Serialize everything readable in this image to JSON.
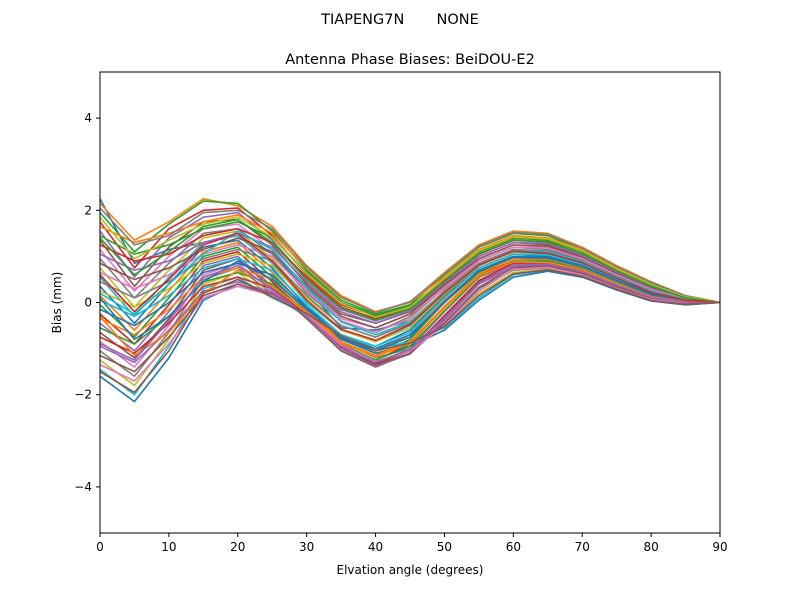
{
  "chart_data": {
    "type": "line",
    "suptitle": "TIAPENG7N       NONE",
    "title": "Antenna Phase Biases: BeiDOU-E2",
    "xlabel": "Elvation angle (degrees)",
    "ylabel": "Bias (mm)",
    "xlim": [
      0,
      90
    ],
    "ylim": [
      -5,
      5
    ],
    "xticks": [
      0,
      10,
      20,
      30,
      40,
      50,
      60,
      70,
      80,
      90
    ],
    "yticks": [
      -4,
      -2,
      0,
      2,
      4
    ],
    "grid": false,
    "legend": "none",
    "x": [
      0,
      5,
      10,
      15,
      20,
      25,
      30,
      35,
      40,
      45,
      50,
      55,
      60,
      65,
      70,
      75,
      80,
      85,
      90
    ],
    "series_colors": [
      "#1f77b4",
      "#ff7f0e",
      "#2ca02c",
      "#d62728",
      "#9467bd",
      "#8c564b",
      "#e377c2",
      "#7f7f7f",
      "#bcbd22",
      "#17becf"
    ],
    "series": [
      {
        "values": [
          2.25,
          0.85,
          1.15,
          1.3,
          1.45,
          1.05,
          0.3,
          -0.55,
          -0.6,
          -0.4,
          0.15,
          0.75,
          1.05,
          1.0,
          0.85,
          0.55,
          0.3,
          0.1,
          0.0
        ]
      },
      {
        "values": [
          2.15,
          1.35,
          1.75,
          2.25,
          2.1,
          1.65,
          0.8,
          0.15,
          -0.2,
          0.0,
          0.65,
          1.25,
          1.55,
          1.5,
          1.2,
          0.8,
          0.45,
          0.15,
          0.0
        ]
      },
      {
        "values": [
          1.95,
          1.1,
          1.7,
          2.2,
          2.15,
          1.55,
          0.7,
          0.05,
          -0.25,
          -0.05,
          0.6,
          1.2,
          1.5,
          1.45,
          1.15,
          0.75,
          0.4,
          0.12,
          0.0
        ]
      },
      {
        "values": [
          1.75,
          0.75,
          1.6,
          2.0,
          2.05,
          1.45,
          0.6,
          -0.05,
          -0.3,
          -0.1,
          0.5,
          1.1,
          1.4,
          1.35,
          1.1,
          0.7,
          0.38,
          0.1,
          0.0
        ]
      },
      {
        "values": [
          1.55,
          0.55,
          1.4,
          1.85,
          1.95,
          1.35,
          0.5,
          -0.15,
          -0.4,
          -0.15,
          0.45,
          1.05,
          1.35,
          1.3,
          1.05,
          0.68,
          0.35,
          0.1,
          0.0
        ]
      },
      {
        "values": [
          1.35,
          0.35,
          1.2,
          1.75,
          1.8,
          1.25,
          0.4,
          -0.25,
          -0.45,
          -0.2,
          0.4,
          1.0,
          1.3,
          1.25,
          1.0,
          0.65,
          0.33,
          0.08,
          0.0
        ]
      },
      {
        "values": [
          1.15,
          0.25,
          1.0,
          1.6,
          1.7,
          1.15,
          0.3,
          -0.35,
          -0.55,
          -0.25,
          0.35,
          0.95,
          1.25,
          1.2,
          0.95,
          0.6,
          0.3,
          0.08,
          0.0
        ]
      },
      {
        "values": [
          0.95,
          0.1,
          0.85,
          1.5,
          1.6,
          1.05,
          0.2,
          -0.4,
          -0.65,
          -0.3,
          0.3,
          0.9,
          1.2,
          1.15,
          0.92,
          0.58,
          0.28,
          0.07,
          0.0
        ]
      },
      {
        "values": [
          0.75,
          -0.1,
          0.7,
          1.4,
          1.55,
          0.95,
          0.1,
          -0.5,
          -0.75,
          -0.4,
          0.25,
          0.85,
          1.15,
          1.1,
          0.88,
          0.55,
          0.25,
          0.05,
          0.0
        ]
      },
      {
        "values": [
          0.55,
          -0.3,
          0.55,
          1.3,
          1.45,
          0.85,
          0.0,
          -0.6,
          -0.85,
          -0.5,
          0.2,
          0.8,
          1.1,
          1.05,
          0.85,
          0.52,
          0.23,
          0.05,
          0.0
        ]
      },
      {
        "values": [
          0.35,
          -0.45,
          0.4,
          1.2,
          1.35,
          0.75,
          -0.1,
          -0.7,
          -0.95,
          -0.6,
          0.15,
          0.75,
          1.05,
          1.0,
          0.82,
          0.5,
          0.2,
          0.04,
          0.0
        ]
      },
      {
        "values": [
          0.15,
          -0.6,
          0.25,
          1.1,
          1.3,
          0.65,
          -0.15,
          -0.8,
          -1.05,
          -0.7,
          0.05,
          0.7,
          1.0,
          0.95,
          0.78,
          0.48,
          0.18,
          0.03,
          0.0
        ]
      },
      {
        "values": [
          -0.05,
          -0.75,
          0.1,
          1.0,
          1.2,
          0.55,
          -0.2,
          -0.85,
          -1.15,
          -0.8,
          0.0,
          0.65,
          0.95,
          0.92,
          0.75,
          0.45,
          0.16,
          0.02,
          0.0
        ]
      },
      {
        "values": [
          -0.25,
          -0.9,
          -0.05,
          0.9,
          1.1,
          0.45,
          -0.25,
          -0.95,
          -1.25,
          -0.9,
          -0.1,
          0.6,
          0.9,
          0.88,
          0.72,
          0.42,
          0.14,
          0.01,
          0.0
        ]
      },
      {
        "values": [
          -0.45,
          -1.05,
          -0.2,
          0.8,
          1.0,
          0.35,
          -0.3,
          -1.0,
          -1.35,
          -1.0,
          -0.2,
          0.55,
          0.85,
          0.85,
          0.7,
          0.4,
          0.12,
          0.0,
          0.0
        ]
      },
      {
        "values": [
          -0.65,
          -1.2,
          -0.35,
          0.7,
          0.95,
          0.3,
          -0.35,
          -1.05,
          -1.4,
          -1.1,
          -0.3,
          0.45,
          0.8,
          0.8,
          0.65,
          0.38,
          0.1,
          -0.02,
          0.0
        ]
      },
      {
        "values": [
          -0.85,
          -1.4,
          -0.5,
          0.6,
          0.85,
          0.25,
          -0.3,
          -0.95,
          -1.3,
          -1.05,
          -0.4,
          0.4,
          0.75,
          0.78,
          0.62,
          0.35,
          0.08,
          -0.03,
          0.0
        ]
      },
      {
        "values": [
          -1.05,
          -1.6,
          -0.65,
          0.5,
          0.75,
          0.2,
          -0.25,
          -0.85,
          -1.2,
          -1.0,
          -0.45,
          0.3,
          0.7,
          0.75,
          0.6,
          0.33,
          0.06,
          -0.04,
          0.0
        ]
      },
      {
        "values": [
          -1.25,
          -1.8,
          -0.8,
          0.4,
          0.65,
          0.15,
          -0.2,
          -0.75,
          -1.1,
          -0.9,
          -0.5,
          0.2,
          0.65,
          0.72,
          0.58,
          0.3,
          0.05,
          -0.05,
          0.0
        ]
      },
      {
        "values": [
          -1.45,
          -2.0,
          -0.95,
          0.3,
          0.55,
          0.1,
          -0.25,
          -0.7,
          -1.0,
          -0.85,
          -0.55,
          0.1,
          0.6,
          0.7,
          0.56,
          0.28,
          0.04,
          -0.05,
          0.0
        ]
      },
      {
        "values": [
          -1.6,
          -2.15,
          -1.2,
          0.05,
          0.4,
          0.15,
          -0.3,
          -0.8,
          -1.1,
          -0.95,
          -0.6,
          0.05,
          0.55,
          0.68,
          0.55,
          0.27,
          0.03,
          -0.05,
          0.0
        ]
      },
      {
        "values": [
          1.65,
          1.3,
          1.5,
          1.75,
          1.9,
          1.5,
          0.75,
          0.1,
          -0.2,
          0.0,
          0.55,
          1.15,
          1.45,
          1.4,
          1.15,
          0.75,
          0.42,
          0.13,
          0.0
        ]
      },
      {
        "values": [
          1.45,
          1.05,
          1.25,
          1.6,
          1.75,
          1.4,
          0.65,
          0.0,
          -0.28,
          -0.08,
          0.5,
          1.1,
          1.4,
          1.35,
          1.1,
          0.72,
          0.4,
          0.12,
          0.0
        ]
      },
      {
        "values": [
          1.25,
          0.9,
          1.05,
          1.45,
          1.6,
          1.3,
          0.55,
          -0.1,
          -0.35,
          -0.12,
          0.48,
          1.05,
          1.35,
          1.32,
          1.05,
          0.7,
          0.37,
          0.11,
          0.0
        ]
      },
      {
        "values": [
          1.05,
          0.7,
          0.9,
          1.3,
          1.5,
          1.2,
          0.45,
          -0.2,
          -0.45,
          -0.18,
          0.42,
          1.0,
          1.3,
          1.28,
          1.02,
          0.66,
          0.34,
          0.1,
          0.0
        ]
      },
      {
        "values": [
          0.85,
          0.5,
          0.75,
          1.15,
          1.4,
          1.1,
          0.35,
          -0.3,
          -0.55,
          -0.25,
          0.38,
          0.95,
          1.25,
          1.22,
          0.98,
          0.63,
          0.32,
          0.09,
          0.0
        ]
      },
      {
        "values": [
          0.65,
          0.3,
          0.6,
          1.05,
          1.25,
          1.0,
          0.25,
          -0.4,
          -0.65,
          -0.35,
          0.32,
          0.9,
          1.2,
          1.18,
          0.95,
          0.6,
          0.29,
          0.08,
          0.0
        ]
      },
      {
        "values": [
          0.45,
          0.1,
          0.45,
          0.95,
          1.15,
          0.9,
          0.15,
          -0.5,
          -0.75,
          -0.45,
          0.25,
          0.85,
          1.15,
          1.12,
          0.9,
          0.57,
          0.26,
          0.07,
          0.0
        ]
      },
      {
        "values": [
          0.25,
          -0.1,
          0.3,
          0.85,
          1.05,
          0.8,
          0.05,
          -0.6,
          -0.85,
          -0.55,
          0.18,
          0.8,
          1.1,
          1.08,
          0.87,
          0.54,
          0.24,
          0.06,
          0.0
        ]
      },
      {
        "values": [
          0.05,
          -0.3,
          0.15,
          0.75,
          0.95,
          0.7,
          -0.05,
          -0.7,
          -0.95,
          -0.65,
          0.1,
          0.75,
          1.05,
          1.03,
          0.83,
          0.51,
          0.21,
          0.05,
          0.0
        ]
      },
      {
        "values": [
          -0.15,
          -0.5,
          0.0,
          0.65,
          0.85,
          0.6,
          -0.12,
          -0.78,
          -1.05,
          -0.75,
          0.02,
          0.7,
          1.0,
          0.98,
          0.8,
          0.48,
          0.19,
          0.04,
          0.0
        ]
      },
      {
        "values": [
          -0.35,
          -0.7,
          -0.15,
          0.55,
          0.75,
          0.5,
          -0.18,
          -0.85,
          -1.15,
          -0.85,
          -0.08,
          0.62,
          0.95,
          0.94,
          0.76,
          0.45,
          0.16,
          0.03,
          0.0
        ]
      },
      {
        "values": [
          -0.55,
          -0.9,
          -0.3,
          0.45,
          0.65,
          0.4,
          -0.22,
          -0.9,
          -1.25,
          -0.95,
          -0.18,
          0.55,
          0.9,
          0.9,
          0.73,
          0.42,
          0.14,
          0.02,
          0.0
        ]
      },
      {
        "values": [
          -0.75,
          -1.1,
          -0.45,
          0.35,
          0.55,
          0.3,
          -0.26,
          -0.95,
          -1.32,
          -1.05,
          -0.28,
          0.48,
          0.85,
          0.86,
          0.7,
          0.4,
          0.12,
          0.01,
          0.0
        ]
      },
      {
        "values": [
          -0.95,
          -1.3,
          -0.6,
          0.25,
          0.45,
          0.22,
          -0.3,
          -1.0,
          -1.38,
          -1.12,
          -0.38,
          0.4,
          0.8,
          0.82,
          0.66,
          0.37,
          0.1,
          0.0,
          0.0
        ]
      },
      {
        "values": [
          -1.15,
          -1.5,
          -0.75,
          0.15,
          0.4,
          0.18,
          -0.28,
          -0.98,
          -1.35,
          -1.1,
          -0.45,
          0.33,
          0.76,
          0.79,
          0.63,
          0.34,
          0.08,
          -0.01,
          0.0
        ]
      },
      {
        "values": [
          -1.35,
          -1.7,
          -0.9,
          0.1,
          0.35,
          0.15,
          -0.26,
          -0.92,
          -1.28,
          -1.05,
          -0.5,
          0.25,
          0.72,
          0.76,
          0.6,
          0.31,
          0.06,
          -0.02,
          0.0
        ]
      },
      {
        "values": [
          2.05,
          1.25,
          1.45,
          1.95,
          2.0,
          1.6,
          0.78,
          0.12,
          -0.22,
          0.02,
          0.62,
          1.22,
          1.52,
          1.48,
          1.18,
          0.78,
          0.44,
          0.14,
          0.0
        ]
      },
      {
        "values": [
          1.85,
          0.95,
          1.35,
          1.7,
          1.85,
          1.42,
          0.62,
          -0.02,
          -0.32,
          -0.1,
          0.52,
          1.12,
          1.42,
          1.38,
          1.12,
          0.73,
          0.39,
          0.12,
          0.0
        ]
      },
      {
        "values": [
          0.2,
          -0.25,
          0.4,
          1.05,
          1.55,
          1.15,
          0.32,
          -0.42,
          -0.7,
          -0.42,
          0.22,
          0.82,
          1.12,
          1.1,
          0.88,
          0.55,
          0.25,
          0.06,
          0.0
        ]
      },
      {
        "values": [
          0.1,
          -0.8,
          -0.3,
          0.45,
          0.9,
          0.5,
          -0.15,
          -0.75,
          -1.0,
          -0.7,
          0.0,
          0.68,
          0.98,
          0.96,
          0.78,
          0.47,
          0.17,
          0.03,
          0.0
        ]
      },
      {
        "values": [
          -0.3,
          -1.15,
          -0.65,
          0.2,
          0.7,
          0.35,
          -0.22,
          -0.88,
          -1.18,
          -0.88,
          -0.12,
          0.58,
          0.88,
          0.87,
          0.71,
          0.41,
          0.13,
          0.01,
          0.0
        ]
      },
      {
        "values": [
          1.4,
          0.6,
          1.1,
          1.65,
          1.8,
          1.3,
          0.5,
          -0.12,
          -0.38,
          -0.14,
          0.46,
          1.06,
          1.36,
          1.31,
          1.06,
          0.69,
          0.36,
          0.1,
          0.0
        ]
      },
      {
        "values": [
          0.6,
          -0.2,
          0.5,
          1.25,
          1.5,
          0.9,
          0.05,
          -0.58,
          -0.82,
          -0.48,
          0.21,
          0.81,
          1.11,
          1.07,
          0.86,
          0.53,
          0.22,
          0.05,
          0.0
        ]
      },
      {
        "values": [
          -0.9,
          -1.25,
          -0.4,
          0.55,
          0.8,
          0.28,
          -0.3,
          -0.98,
          -1.3,
          -1.02,
          -0.35,
          0.42,
          0.82,
          0.83,
          0.67,
          0.38,
          0.11,
          0.0,
          0.0
        ]
      },
      {
        "values": [
          -1.5,
          -1.95,
          -1.05,
          0.2,
          0.5,
          0.12,
          -0.24,
          -0.72,
          -1.05,
          -0.88,
          -0.52,
          0.15,
          0.62,
          0.71,
          0.57,
          0.29,
          0.04,
          -0.04,
          0.0
        ]
      }
    ]
  }
}
